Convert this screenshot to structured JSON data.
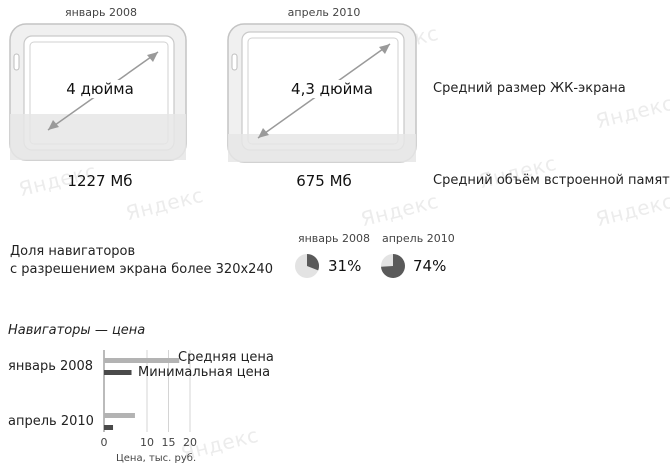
{
  "watermark": "Яндекс",
  "devices": [
    {
      "period": "январь 2008",
      "screen_size": "4 дюйма",
      "memory": "1227 Мб"
    },
    {
      "period": "апрель 2010",
      "screen_size": "4,3 дюйма",
      "memory": "675 Мб"
    }
  ],
  "labels": {
    "screen_size": "Средний размер ЖК-экрана",
    "memory": "Средний объём встроенной памяти",
    "share_line1": "Доля навигаторов",
    "share_line2": "с разрешением экрана более 320x240"
  },
  "shares": [
    {
      "period": "январь 2008",
      "value": 31,
      "value_label": "31%"
    },
    {
      "period": "апрель 2010",
      "value": 74,
      "value_label": "74%"
    }
  ],
  "colors": {
    "device_body": "#e8e8e8",
    "device_stroke": "#bdbdbd",
    "screen_fill": "#e6e6e6",
    "arrow": "#9a9a9a",
    "avg_bar": "#b3b3b3",
    "min_bar": "#4a4a4a",
    "pie_fill": "#5a5a5a",
    "pie_bg": "#e3e3e3"
  },
  "chart_data": {
    "type": "bar",
    "orientation": "horizontal",
    "title": "Навигаторы — цена",
    "categories": [
      "январь 2008",
      "апрель 2010"
    ],
    "series": [
      {
        "name": "Средняя цена",
        "values": [
          17.5,
          7.2
        ]
      },
      {
        "name": "Минимальная цена",
        "values": [
          6.4,
          2.1
        ]
      }
    ],
    "xlabel": "Цена, тыс. руб.",
    "xlim": [
      0,
      20
    ],
    "xticks": [
      0,
      10,
      15,
      20
    ],
    "grid": true
  }
}
